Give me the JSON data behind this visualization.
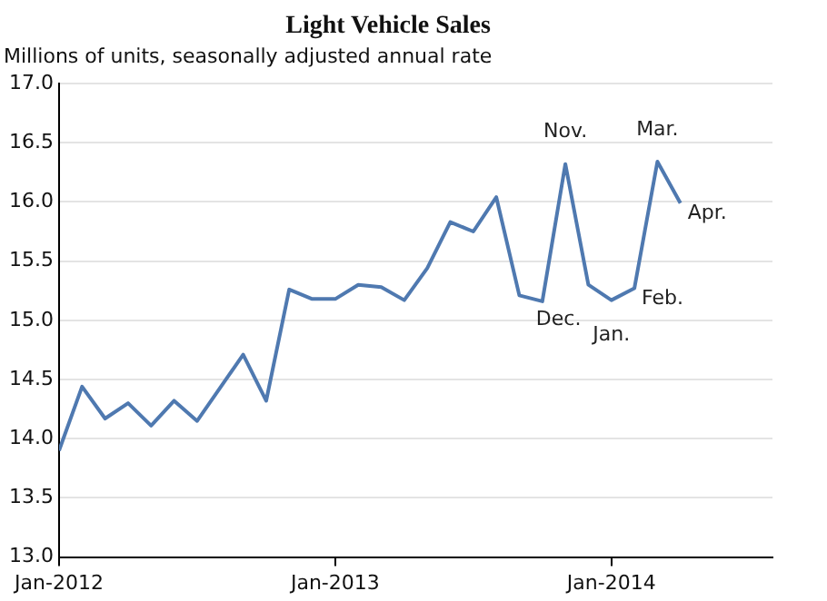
{
  "chart_data": {
    "type": "line",
    "title": "Light Vehicle Sales",
    "subtitle": "Millions of units, seasonally adjusted annual rate",
    "x": [
      "2012-01",
      "2012-02",
      "2012-03",
      "2012-04",
      "2012-05",
      "2012-06",
      "2012-07",
      "2012-08",
      "2012-09",
      "2012-10",
      "2012-11",
      "2012-12",
      "2013-01",
      "2013-02",
      "2013-03",
      "2013-04",
      "2013-05",
      "2013-06",
      "2013-07",
      "2013-08",
      "2013-09",
      "2013-10",
      "2013-11",
      "2013-12",
      "2014-01",
      "2014-02",
      "2014-03",
      "2014-04"
    ],
    "series": [
      {
        "color": "#4f79b0",
        "values": [
          13.9,
          14.44,
          14.17,
          14.3,
          14.11,
          14.32,
          14.15,
          14.43,
          14.71,
          14.32,
          15.26,
          15.18,
          15.18,
          15.3,
          15.28,
          15.17,
          15.44,
          15.83,
          15.75,
          16.04,
          15.21,
          15.16,
          16.32,
          15.3,
          15.17,
          15.27,
          16.34,
          15.99
        ]
      }
    ],
    "xlim": [
      "2012-01",
      "2014-08"
    ],
    "xticks": [
      {
        "value": "2012-01",
        "label": "Jan-2012"
      },
      {
        "value": "2013-01",
        "label": "Jan-2013"
      },
      {
        "value": "2014-01",
        "label": "Jan-2014"
      }
    ],
    "ylim": [
      13,
      17
    ],
    "yticks": [
      {
        "value": 13,
        "label": "13.0"
      },
      13.5,
      {
        "value": 14,
        "label": "14.0"
      },
      14.5,
      {
        "value": 15,
        "label": "15.0"
      },
      15.5,
      {
        "value": 16,
        "label": "16.0"
      },
      16.5,
      {
        "value": 17,
        "label": "17.0"
      }
    ],
    "grid": "y",
    "legend": false,
    "marker": "none",
    "line_style": "solid",
    "annotations": [
      {
        "text": "Nov.",
        "x": "2013-11",
        "y": 16.32
      },
      {
        "text": "Dec.",
        "x": "2013-12",
        "y": 15.3
      },
      {
        "text": "Jan.",
        "x": "2014-01",
        "y": 15.17
      },
      {
        "text": "Feb.",
        "x": "2014-02",
        "y": 15.27
      },
      {
        "text": "Mar.",
        "x": "2014-03",
        "y": 16.34
      },
      {
        "text": "Apr.",
        "x": "2014-04",
        "y": 15.99
      }
    ]
  }
}
